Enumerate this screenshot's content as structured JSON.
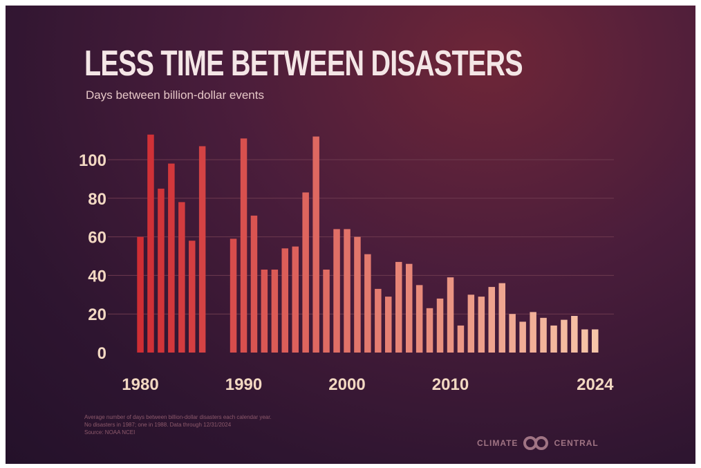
{
  "title": "LESS TIME BETWEEN DISASTERS",
  "subtitle": "Days between billion-dollar events",
  "footnotes": [
    "Average number of days between billion-dollar disasters each calendar year.",
    "No disasters in 1987; one in 1988. Data through 12/31/2024",
    "Source: NOAA NCEI"
  ],
  "brand": {
    "left": "CLIMATE",
    "right": "CENTRAL",
    "logo_icon": "climate-central-logo-icon"
  },
  "colors": {
    "bar_start": "#cf2e34",
    "bar_end": "#f7c5a8",
    "grid": "#6e3a4f",
    "text": "#f2d8c2"
  },
  "chart_data": {
    "type": "bar",
    "title": "LESS TIME BETWEEN DISASTERS",
    "subtitle": "Days between billion-dollar events",
    "xlabel": "",
    "ylabel": "",
    "ylim": [
      0,
      118
    ],
    "yticks": [
      0,
      20,
      40,
      60,
      80,
      100
    ],
    "xticks": [
      "1980",
      "1990",
      "2000",
      "2010",
      "2024"
    ],
    "grid": true,
    "categories": [
      1980,
      1981,
      1982,
      1983,
      1984,
      1985,
      1986,
      1987,
      1988,
      1989,
      1990,
      1991,
      1992,
      1993,
      1994,
      1995,
      1996,
      1997,
      1998,
      1999,
      2000,
      2001,
      2002,
      2003,
      2004,
      2005,
      2006,
      2007,
      2008,
      2009,
      2010,
      2011,
      2012,
      2013,
      2014,
      2015,
      2016,
      2017,
      2018,
      2019,
      2020,
      2021,
      2022,
      2023,
      2024
    ],
    "values": [
      60,
      113,
      85,
      98,
      78,
      58,
      107,
      null,
      null,
      59,
      111,
      71,
      43,
      43,
      54,
      55,
      83,
      112,
      43,
      64,
      64,
      60,
      51,
      33,
      29,
      47,
      46,
      35,
      23,
      28,
      39,
      14,
      30,
      29,
      34,
      36,
      20,
      16,
      21,
      18,
      14,
      17,
      19,
      12,
      12
    ]
  }
}
